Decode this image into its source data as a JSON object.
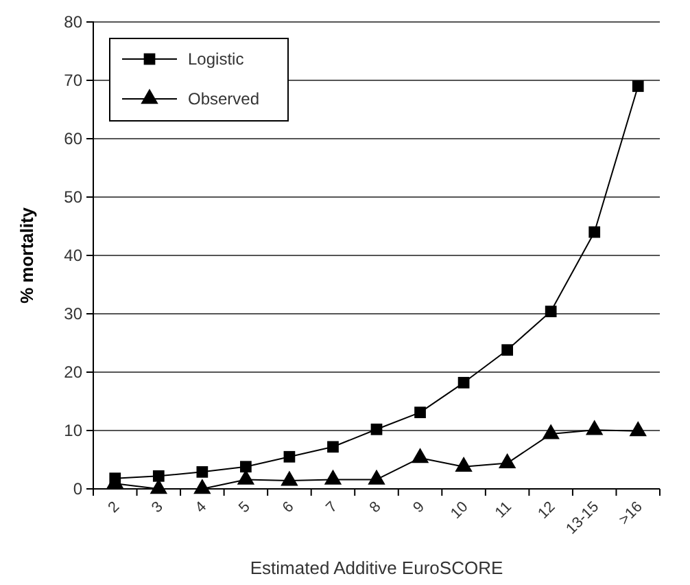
{
  "chart_data": {
    "type": "line",
    "xlabel": "Estimated Additive EuroSCORE",
    "ylabel": "% mortality",
    "categories": [
      "2",
      "3",
      "4",
      "5",
      "6",
      "7",
      "8",
      "9",
      "10",
      "11",
      "12",
      "13-15",
      ">16"
    ],
    "series": [
      {
        "name": "Logistic",
        "color": "#000000",
        "marker": "square",
        "values": [
          1.8,
          2.2,
          2.9,
          3.8,
          5.5,
          7.2,
          10.2,
          13.1,
          18.2,
          23.8,
          30.4,
          44,
          69
        ]
      },
      {
        "name": "Observed",
        "color": "#000000",
        "marker": "triangle",
        "values": [
          0.9,
          0,
          0,
          1.6,
          1.4,
          1.6,
          1.6,
          5.3,
          3.8,
          4.4,
          9.4,
          10.1,
          9.9
        ]
      }
    ],
    "ylim": [
      0,
      80
    ],
    "yticks": [
      0,
      10,
      20,
      30,
      40,
      50,
      60,
      70,
      80
    ],
    "grid": "y",
    "legend": "top left"
  }
}
